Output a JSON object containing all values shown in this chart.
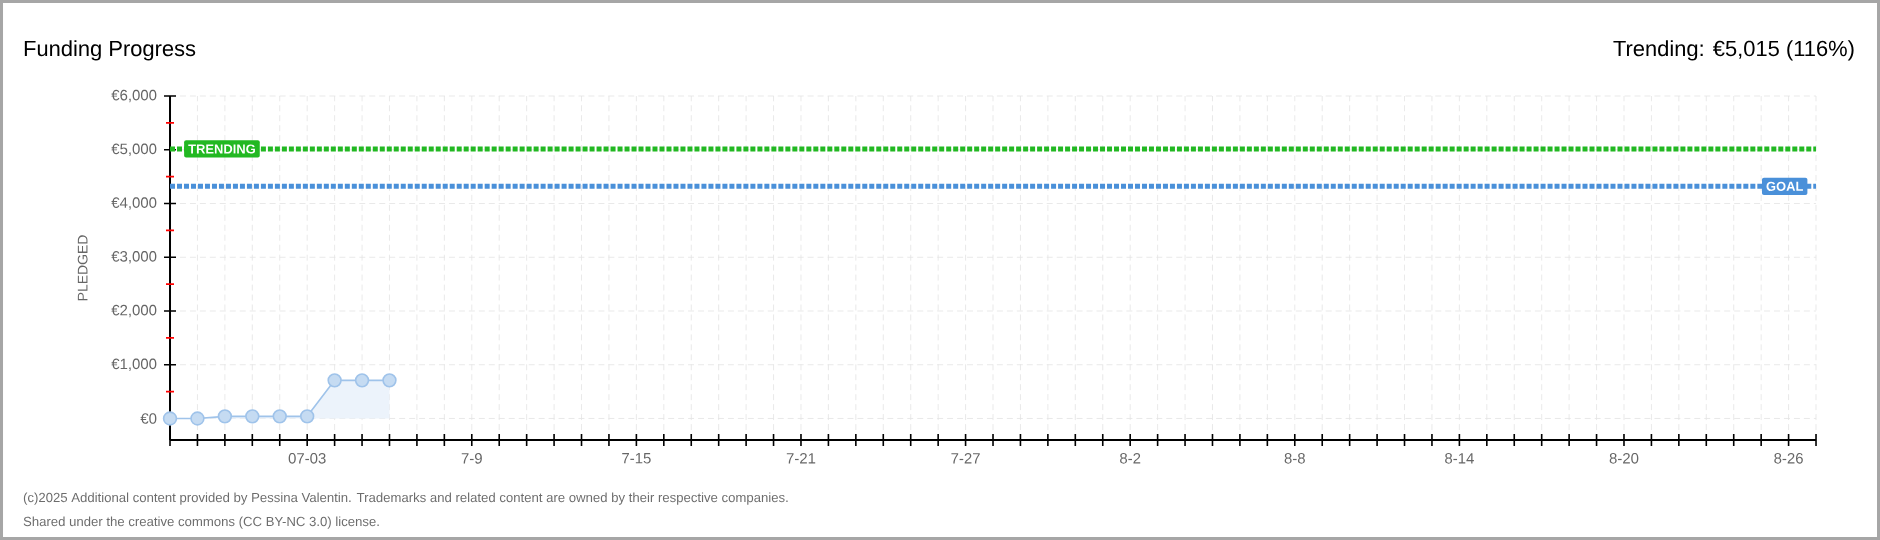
{
  "chart_data": {
    "type": "area",
    "title": "Funding Progress",
    "subtitle": "Trending: €5,015 (116%)",
    "ylabel": "PLEDGED",
    "x": [
      "2025-06-28",
      "2025-06-29",
      "2025-06-30",
      "2025-07-01",
      "2025-07-02",
      "2025-07-03",
      "2025-07-04",
      "2025-07-05",
      "2025-07-06"
    ],
    "values": [
      0,
      0,
      40,
      40,
      40,
      40,
      710,
      710,
      710
    ],
    "color": "#9fc3ea",
    "marker": "circle",
    "grid": true,
    "xlim": [
      "2025-06-28",
      "2025-08-27"
    ],
    "xticks": [
      {
        "value": "2025-06-28",
        "label": null
      },
      {
        "value": "2025-06-29",
        "label": null
      },
      {
        "value": "2025-06-30",
        "label": null
      },
      {
        "value": "2025-07-01",
        "label": null
      },
      {
        "value": "2025-07-02",
        "label": null
      },
      {
        "value": "2025-07-03",
        "label": "07-03"
      },
      {
        "value": "2025-07-04",
        "label": null
      },
      {
        "value": "2025-07-05",
        "label": null
      },
      {
        "value": "2025-07-06",
        "label": null
      },
      {
        "value": "2025-07-07",
        "label": null
      },
      {
        "value": "2025-07-08",
        "label": null
      },
      {
        "value": "2025-07-09",
        "label": "7-9"
      },
      {
        "value": "2025-07-10",
        "label": null
      },
      {
        "value": "2025-07-11",
        "label": null
      },
      {
        "value": "2025-07-12",
        "label": null
      },
      {
        "value": "2025-07-13",
        "label": null
      },
      {
        "value": "2025-07-14",
        "label": null
      },
      {
        "value": "2025-07-15",
        "label": "7-15"
      },
      {
        "value": "2025-07-16",
        "label": null
      },
      {
        "value": "2025-07-17",
        "label": null
      },
      {
        "value": "2025-07-18",
        "label": null
      },
      {
        "value": "2025-07-19",
        "label": null
      },
      {
        "value": "2025-07-20",
        "label": null
      },
      {
        "value": "2025-07-21",
        "label": "7-21"
      },
      {
        "value": "2025-07-22",
        "label": null
      },
      {
        "value": "2025-07-23",
        "label": null
      },
      {
        "value": "2025-07-24",
        "label": null
      },
      {
        "value": "2025-07-25",
        "label": null
      },
      {
        "value": "2025-07-26",
        "label": null
      },
      {
        "value": "2025-07-27",
        "label": "7-27"
      },
      {
        "value": "2025-07-28",
        "label": null
      },
      {
        "value": "2025-07-29",
        "label": null
      },
      {
        "value": "2025-07-30",
        "label": null
      },
      {
        "value": "2025-07-31",
        "label": null
      },
      {
        "value": "2025-08-01",
        "label": null
      },
      {
        "value": "2025-08-02",
        "label": "8-2"
      },
      {
        "value": "2025-08-03",
        "label": null
      },
      {
        "value": "2025-08-04",
        "label": null
      },
      {
        "value": "2025-08-05",
        "label": null
      },
      {
        "value": "2025-08-06",
        "label": null
      },
      {
        "value": "2025-08-07",
        "label": null
      },
      {
        "value": "2025-08-08",
        "label": "8-8"
      },
      {
        "value": "2025-08-09",
        "label": null
      },
      {
        "value": "2025-08-10",
        "label": null
      },
      {
        "value": "2025-08-11",
        "label": null
      },
      {
        "value": "2025-08-12",
        "label": null
      },
      {
        "value": "2025-08-13",
        "label": null
      },
      {
        "value": "2025-08-14",
        "label": "8-14"
      },
      {
        "value": "2025-08-15",
        "label": null
      },
      {
        "value": "2025-08-16",
        "label": null
      },
      {
        "value": "2025-08-17",
        "label": null
      },
      {
        "value": "2025-08-18",
        "label": null
      },
      {
        "value": "2025-08-19",
        "label": null
      },
      {
        "value": "2025-08-20",
        "label": "8-20"
      },
      {
        "value": "2025-08-21",
        "label": null
      },
      {
        "value": "2025-08-22",
        "label": null
      },
      {
        "value": "2025-08-23",
        "label": null
      },
      {
        "value": "2025-08-24",
        "label": null
      },
      {
        "value": "2025-08-25",
        "label": null
      },
      {
        "value": "2025-08-26",
        "label": "8-26"
      },
      {
        "value": "2025-08-27",
        "label": null
      }
    ],
    "ylim": [
      -400,
      6000
    ],
    "yticks": [
      {
        "value": 0,
        "label": "€0"
      },
      {
        "value": 500,
        "label": null
      },
      {
        "value": 1000,
        "label": "€1,000"
      },
      {
        "value": 1500,
        "label": null
      },
      {
        "value": 2000,
        "label": "€2,000"
      },
      {
        "value": 2500,
        "label": null
      },
      {
        "value": 3000,
        "label": "€3,000"
      },
      {
        "value": 3500,
        "label": null
      },
      {
        "value": 4000,
        "label": "€4,000"
      },
      {
        "value": 4500,
        "label": null
      },
      {
        "value": 5000,
        "label": "€5,000"
      },
      {
        "value": 5500,
        "label": null
      },
      {
        "value": 6000,
        "label": "€6,000"
      }
    ],
    "ref_lines": [
      {
        "axis": "y",
        "value": 5015,
        "label": "TRENDING",
        "color": "#22b822",
        "line_style": "dotted"
      },
      {
        "axis": "y",
        "value": 4320,
        "label": "GOAL",
        "color": "#4a90d9",
        "line_style": "dotted"
      }
    ],
    "annotations": [
      "(c)2025 Additional content provided by Pessina Valentin. Trademarks and related content are owned by their respective companies.",
      "Shared under the creative commons (CC BY-NC 3.0) license."
    ]
  }
}
